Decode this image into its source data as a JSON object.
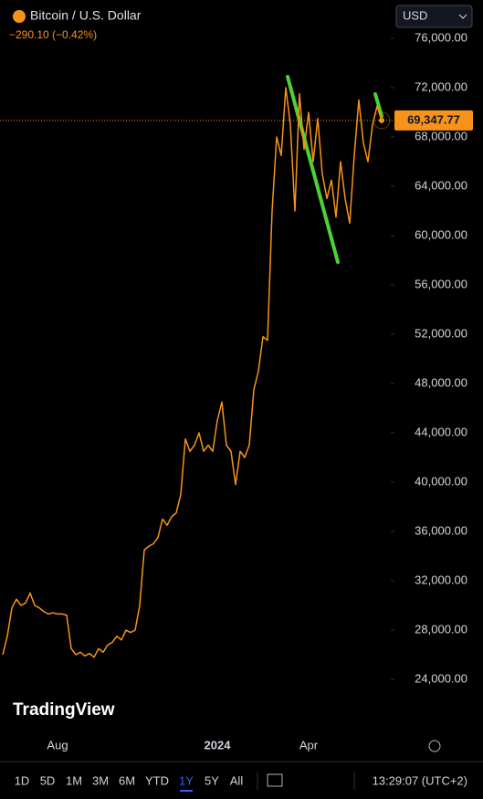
{
  "chart_data": {
    "type": "line",
    "title": "Bitcoin / U.S. Dollar",
    "change": "−290.10 (−0.42%)",
    "currency": "USD",
    "series": [
      {
        "name": "Bitcoin / U.S. Dollar",
        "color": "#f7931a",
        "values": [
          26000,
          27500,
          29800,
          30500,
          30000,
          30200,
          31000,
          30000,
          29800,
          29500,
          29300,
          29400,
          29300,
          29300,
          29200,
          26500,
          26000,
          26200,
          25900,
          26100,
          25800,
          26500,
          26200,
          26800,
          27000,
          27500,
          27200,
          28000,
          27800,
          28000,
          30000,
          34500,
          34800,
          35000,
          35500,
          37000,
          36500,
          37200,
          37500,
          39000,
          43500,
          42500,
          43000,
          44000,
          42500,
          43000,
          42500,
          45000,
          46500,
          43000,
          42500,
          39800,
          42500,
          42000,
          43000,
          47500,
          49000,
          51800,
          51500,
          62000,
          68000,
          66500,
          72000,
          69000,
          62000,
          71500,
          67000,
          70000,
          66000,
          69500,
          65000,
          63000,
          64500,
          61500,
          66000,
          63000,
          61000,
          66500,
          71000,
          67500,
          66000,
          69000,
          70500,
          69347.77
        ],
        "value_labels": {
          "83": "69,347.77"
        }
      }
    ],
    "xlim": [
      0,
      83
    ],
    "xticks": [
      {
        "value": 12,
        "label": "Aug"
      },
      {
        "value": 47,
        "label": "2024"
      },
      {
        "value": 67,
        "label": "Apr"
      }
    ],
    "ylim": [
      19850,
      76520
    ],
    "yticks": [
      {
        "value": 24000,
        "label": "24,000.00"
      },
      {
        "value": 28000,
        "label": "28,000.00"
      },
      {
        "value": 32000,
        "label": "32,000.00"
      },
      {
        "value": 36000,
        "label": "36,000.00"
      },
      {
        "value": 40000,
        "label": "40,000.00"
      },
      {
        "value": 44000,
        "label": "44,000.00"
      },
      {
        "value": 48000,
        "label": "48,000.00"
      },
      {
        "value": 52000,
        "label": "52,000.00"
      },
      {
        "value": 56000,
        "label": "56,000.00"
      },
      {
        "value": 60000,
        "label": "60,000.00"
      },
      {
        "value": 64000,
        "label": "64,000.00"
      },
      {
        "value": 68000,
        "label": "68,000.00"
      },
      {
        "value": 72000,
        "label": "72,000.00"
      },
      {
        "value": 76000,
        "label": "76,000.00"
      }
    ]
  },
  "ui": {
    "brand": "TradingView",
    "ranges": [
      "1D",
      "5D",
      "1M",
      "3M",
      "6M",
      "YTD",
      "1Y",
      "5Y",
      "All"
    ],
    "time": "13:29:07 (UTC+2)"
  }
}
